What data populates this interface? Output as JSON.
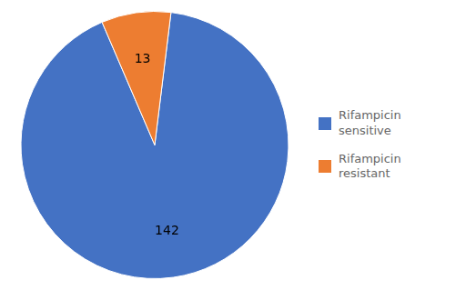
{
  "chart_data": {
    "type": "pie",
    "categories": [
      "Rifampicin\nsensitive",
      "Rifampicin\nresistant"
    ],
    "values": [
      142,
      13
    ],
    "colors": [
      "#4472C4",
      "#ED7D31"
    ],
    "data_labels": true,
    "legend": "right"
  }
}
